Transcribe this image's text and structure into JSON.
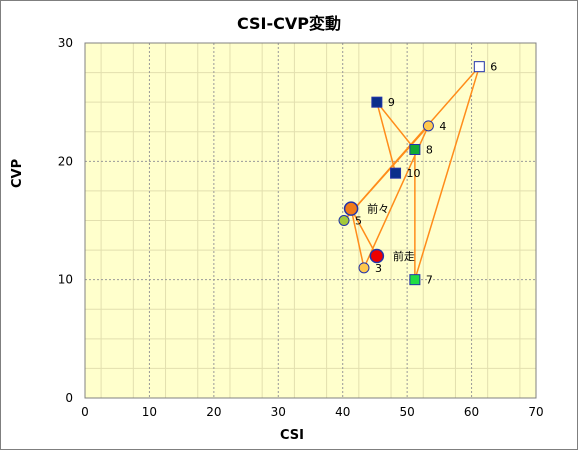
{
  "chart_data": {
    "type": "scatter",
    "title": "CSI-CVP変動",
    "xlabel": "CSI",
    "ylabel": "CVP",
    "xlim": [
      0,
      70
    ],
    "ylim": [
      0,
      30
    ],
    "xticks": [
      0,
      10,
      20,
      30,
      40,
      50,
      60,
      70
    ],
    "yticks": [
      0,
      10,
      20,
      30
    ],
    "grid": true,
    "colors": {
      "plot_bg": "#ffffcc",
      "line": "#ff8c1a",
      "circle_fill": "#ffc94d",
      "circle_stroke": "#2233aa"
    },
    "path_order": [
      "前走",
      "前々",
      "3",
      "4",
      "5",
      "6",
      "7",
      "8",
      "9",
      "10"
    ],
    "points": [
      {
        "label": "前走",
        "x": 45.3,
        "y": 12.0,
        "marker": "circle-large",
        "color": "#ee0000"
      },
      {
        "label": "前々",
        "x": 41.3,
        "y": 16.0,
        "marker": "circle-large",
        "color": "#f07a1a"
      },
      {
        "label": "3",
        "x": 43.3,
        "y": 11.0,
        "marker": "circle",
        "color": "#ffc94d"
      },
      {
        "label": "4",
        "x": 53.3,
        "y": 23.0,
        "marker": "circle",
        "color": "#ffc94d"
      },
      {
        "label": "5",
        "x": 40.2,
        "y": 15.0,
        "marker": "circle",
        "color": "#a3c93a"
      },
      {
        "label": "6",
        "x": 61.2,
        "y": 28.0,
        "marker": "square",
        "color": "#ffffff"
      },
      {
        "label": "7",
        "x": 51.2,
        "y": 10.0,
        "marker": "square",
        "color": "#22dd44"
      },
      {
        "label": "8",
        "x": 51.2,
        "y": 21.0,
        "marker": "square",
        "color": "#11aa33"
      },
      {
        "label": "9",
        "x": 45.3,
        "y": 25.0,
        "marker": "square",
        "color": "#0b2f8a"
      },
      {
        "label": "10",
        "x": 48.2,
        "y": 19.0,
        "marker": "square",
        "color": "#0b2f8a"
      }
    ]
  }
}
